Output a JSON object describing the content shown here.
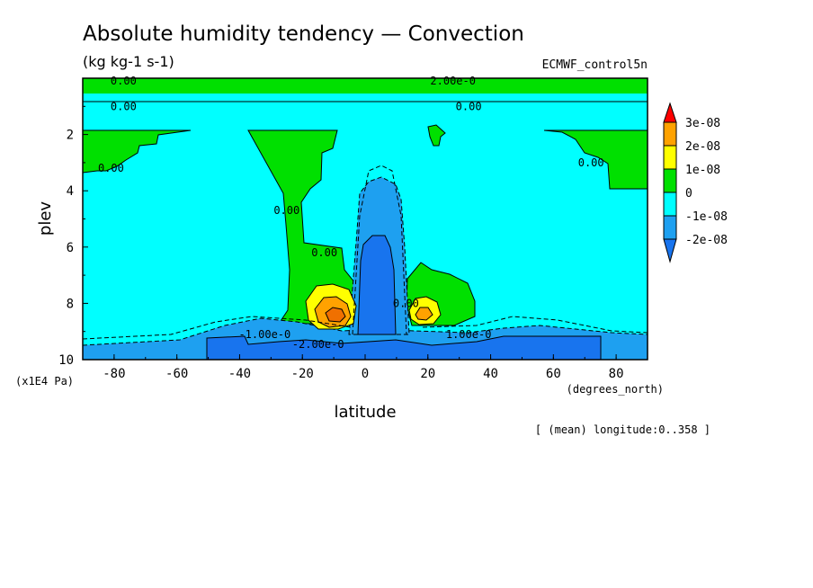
{
  "header": {
    "title": "Absolute humidity tendency — Convection",
    "units": "(kg kg-1 s-1)",
    "dataset": "ECMWF_control5n"
  },
  "axes": {
    "x_label": "latitude",
    "x_units": "(degrees_north)",
    "y_label": "plev",
    "y_units": "(x1E4 Pa)",
    "x_ticks": [
      "-80",
      "-60",
      "-40",
      "-20",
      "0",
      "20",
      "40",
      "60",
      "80"
    ],
    "y_ticks": [
      "2",
      "4",
      "6",
      "8",
      "10"
    ]
  },
  "footer": {
    "note": "[ (mean) longitude:0..358 ]"
  },
  "legend": {
    "labels": [
      "3e-08",
      "2e-08",
      "1e-08",
      "0",
      "-1e-08",
      "-2e-08"
    ]
  },
  "contour_labels": [
    {
      "text": "0.00",
      "x": -77,
      "y": 0.1
    },
    {
      "text": "2.00e-0",
      "x": 28,
      "y": 0.1
    },
    {
      "text": "0.00",
      "x": -77,
      "y": 1.0
    },
    {
      "text": "0.00",
      "x": 33,
      "y": 1.0
    },
    {
      "text": "0.00",
      "x": -81,
      "y": 3.2
    },
    {
      "text": "0.00",
      "x": 72,
      "y": 3.0
    },
    {
      "text": "0.00",
      "x": -25,
      "y": 4.7
    },
    {
      "text": "0.00",
      "x": -13,
      "y": 6.2
    },
    {
      "text": "0.00",
      "x": 13,
      "y": 8.0
    },
    {
      "text": "-1.00e-0",
      "x": -32,
      "y": 9.1
    },
    {
      "text": "1.00e-0",
      "x": 33,
      "y": 9.1
    },
    {
      "text": "-2.00e-0",
      "x": -15,
      "y": 9.45
    }
  ],
  "chart_data": {
    "type": "heatmap",
    "title": "Absolute humidity tendency — Convection",
    "subtitle": "(kg kg-1 s-1)",
    "xlabel": "latitude",
    "ylabel": "plev",
    "xlim": [
      -90,
      90
    ],
    "ylim": [
      10,
      0
    ],
    "y_reversed": true,
    "levels": [
      -2e-08,
      -1e-08,
      0,
      1e-08,
      2e-08,
      3e-08
    ],
    "colors": {
      "below_-2e-08": "#1874ee",
      "-2e-08_to_-1e-08": "#1ea0f0",
      "-1e-08_to_0": "#00ffff",
      "0_to_1e-08": "#00e000",
      "1e-08_to_2e-08": "#ffff00",
      "2e-08_to_3e-08": "#ffa200",
      "above_3e-08": "#ff0000",
      "max_core": "#f07000"
    },
    "features": [
      {
        "region": "upper layer",
        "lat_range": [
          -90,
          90
        ],
        "plev_range": [
          0,
          0.6
        ],
        "sign": "positive"
      },
      {
        "region": "tropical upper dry core",
        "lat_range": [
          -2,
          10
        ],
        "plev_range": [
          5.6,
          9.2
        ],
        "sign": "strong negative"
      },
      {
        "region": "moistening max south",
        "lat": -10,
        "plev": 8.4,
        "value_approx": 2.5e-08
      },
      {
        "region": "moistening max north",
        "lat": 18,
        "plev": 8.5,
        "value_approx": 1.6e-08
      },
      {
        "region": "near-surface drying",
        "lat_range": [
          -55,
          75
        ],
        "plev_range": [
          9.2,
          10
        ],
        "sign": "negative"
      }
    ]
  }
}
